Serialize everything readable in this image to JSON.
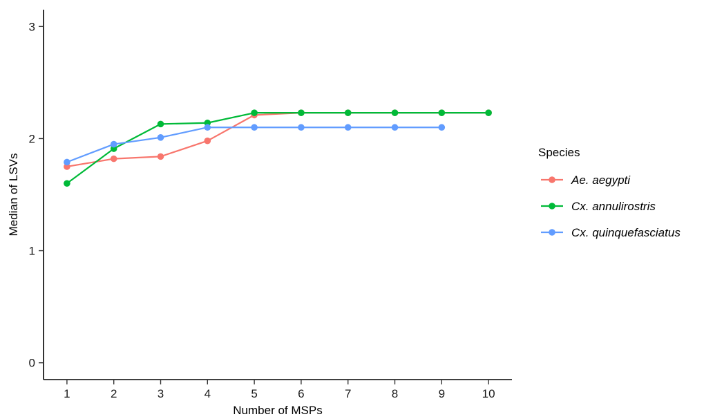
{
  "chart_data": {
    "type": "line",
    "xlabel": "Number of MSPs",
    "ylabel": "Median of LSVs",
    "x": [
      1,
      2,
      3,
      4,
      5,
      6,
      7,
      8,
      9,
      10
    ],
    "xlim": [
      0.5,
      10.5
    ],
    "ylim": [
      -0.15,
      3.15
    ],
    "xticks": [
      "1",
      "2",
      "3",
      "4",
      "5",
      "6",
      "7",
      "8",
      "9",
      "10"
    ],
    "yticks": [
      "0",
      "1",
      "2",
      "3"
    ],
    "grid": false,
    "legend": {
      "title": "Species",
      "placement": "right"
    },
    "series": [
      {
        "name": "Ae. aegypti",
        "color": "#F8766D",
        "x": [
          1,
          2,
          3,
          4,
          5,
          6,
          7,
          8,
          9,
          10
        ],
        "values": [
          1.75,
          1.82,
          1.84,
          1.98,
          2.21,
          2.23,
          2.23,
          2.23,
          2.23,
          2.23
        ]
      },
      {
        "name": "Cx. annulirostris",
        "color": "#00BA38",
        "x": [
          1,
          2,
          3,
          4,
          5,
          6,
          7,
          8,
          9,
          10
        ],
        "values": [
          1.6,
          1.91,
          2.13,
          2.14,
          2.23,
          2.23,
          2.23,
          2.23,
          2.23,
          2.23
        ]
      },
      {
        "name": "Cx. quinquefasciatus",
        "color": "#619CFF",
        "x": [
          1,
          2,
          3,
          4,
          5,
          6,
          7,
          8,
          9
        ],
        "values": [
          1.79,
          1.95,
          2.01,
          2.1,
          2.1,
          2.1,
          2.1,
          2.1,
          2.1
        ]
      }
    ]
  }
}
